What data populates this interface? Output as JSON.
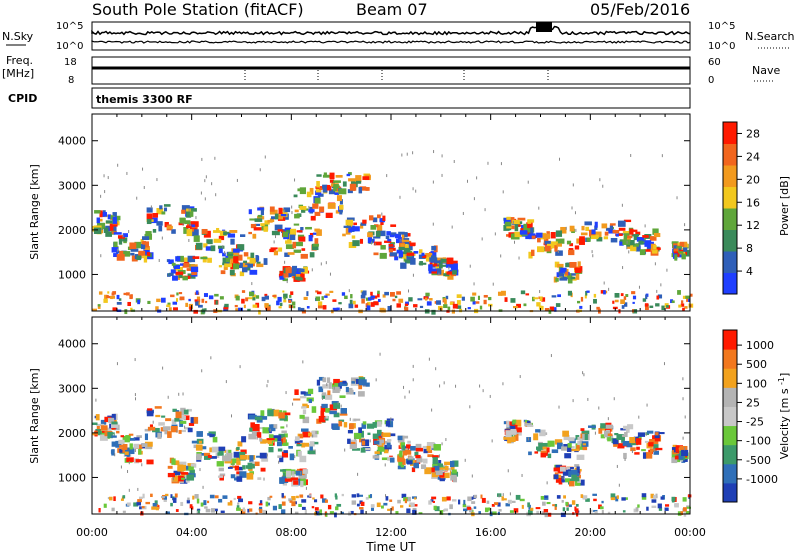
{
  "header": {
    "station": "South Pole Station (fitACF)",
    "beam": "Beam 07",
    "date": "05/Feb/2016"
  },
  "strip_labels": {
    "nsky": "N.Sky",
    "nsky_ticks": [
      "10^5",
      "10^0"
    ],
    "freq_top": "Freq.",
    "freq_units": "[MHz]",
    "freq_ticks": [
      "18",
      "8"
    ],
    "cpid": "CPID",
    "nsearch": "N.Search",
    "nsearch_ticks": [
      "10^5",
      "10^0"
    ],
    "nave": "Nave",
    "nave_ticks": [
      "60",
      "0"
    ],
    "program": "themis 3300 RF"
  },
  "colors": {
    "power_scale": [
      "#1f3fff",
      "#2f5fb8",
      "#3a8a5a",
      "#5fa63a",
      "#f2c81e",
      "#f29a1e",
      "#f2661e",
      "#ff1a00"
    ],
    "velocity_scale": [
      "#1f3fb5",
      "#2f6fb8",
      "#3c9a6a",
      "#6ac83a",
      "#c8c8c8",
      "#b4b4b4",
      "#f2a21e",
      "#f2781e",
      "#ff1a00"
    ]
  },
  "chart_data": [
    {
      "type": "heatmap",
      "title": "Power",
      "ylabel": "Slant Range [km]",
      "xlabel": "Time UT",
      "xlim": [
        "00:00",
        "24:00"
      ],
      "ylim": [
        180,
        4600
      ],
      "xticks": [
        "00:00",
        "04:00",
        "08:00",
        "12:00",
        "16:00",
        "20:00",
        "00:00"
      ],
      "yticks": [
        "1000",
        "2000",
        "3000",
        "4000"
      ],
      "colorbar_label": "Power [dB]",
      "colorbar_ticks": [
        "4",
        "8",
        "12",
        "16",
        "20",
        "24",
        "28"
      ],
      "colorbar_range": [
        0,
        30
      ]
    },
    {
      "type": "heatmap",
      "title": "Velocity",
      "ylabel": "Slant Range [km]",
      "xlabel": "Time UT",
      "xlim": [
        "00:00",
        "24:00"
      ],
      "ylim": [
        180,
        4600
      ],
      "xticks": [
        "00:00",
        "04:00",
        "08:00",
        "12:00",
        "16:00",
        "20:00",
        "00:00"
      ],
      "yticks": [
        "1000",
        "2000",
        "3000",
        "4000"
      ],
      "colorbar_label": "Velocity [m s^-1]",
      "colorbar_ticks": [
        "1000",
        "500",
        "100",
        "25",
        "-25",
        "-100",
        "-500",
        "-1000"
      ]
    }
  ]
}
